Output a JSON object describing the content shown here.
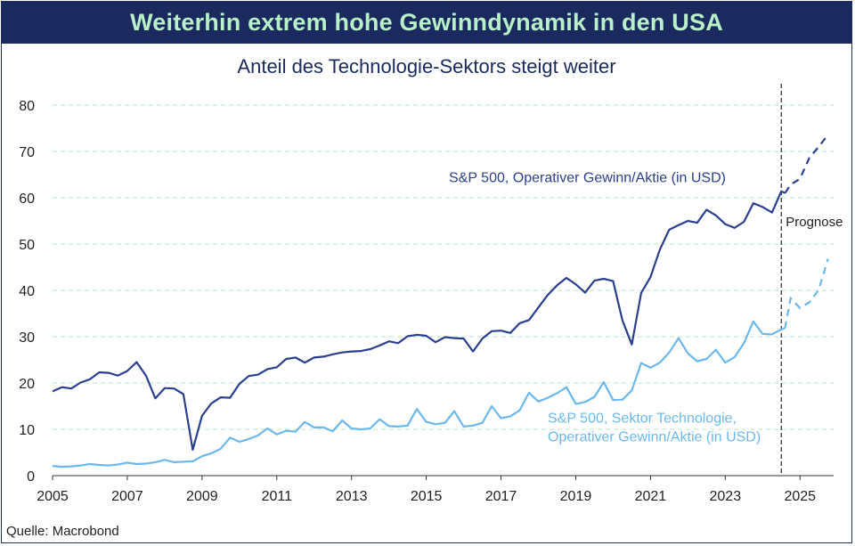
{
  "header": {
    "title": "Weiterhin extrem hohe Gewinndynamik in den USA",
    "subtitle": "Anteil des Technologie-Sektors steigt weiter"
  },
  "source": "Quelle: Macrobond",
  "colors": {
    "banner": "#1b2a5e",
    "banner_text": "#b8f0c8",
    "sp500": "#2b3f8f",
    "tech": "#6cb8ec",
    "grid": "#c8eccd"
  },
  "chart_data": {
    "type": "line",
    "xlim": [
      2005,
      2025.9
    ],
    "ylim": [
      0,
      80
    ],
    "y_ticks": [
      0,
      10,
      20,
      30,
      40,
      50,
      60,
      70,
      80
    ],
    "x_ticks": [
      2005,
      2007,
      2009,
      2011,
      2013,
      2015,
      2017,
      2019,
      2021,
      2023,
      2025
    ],
    "grid": "horizontal dashed",
    "annotation": {
      "label": "Prognose",
      "x": 2024.5
    },
    "series": [
      {
        "name": "S&P 500, Operativer Gewinn/Aktie (in USD)",
        "label_lines": [
          "S&P 500, Operativer Gewinn/Aktie (in USD)"
        ],
        "actual": [
          [
            2005.0,
            18.2
          ],
          [
            2005.25,
            19.1
          ],
          [
            2005.5,
            18.8
          ],
          [
            2005.75,
            20.1
          ],
          [
            2006.0,
            20.8
          ],
          [
            2006.25,
            22.3
          ],
          [
            2006.5,
            22.2
          ],
          [
            2006.75,
            21.6
          ],
          [
            2007.0,
            22.6
          ],
          [
            2007.25,
            24.5
          ],
          [
            2007.5,
            21.6
          ],
          [
            2007.75,
            16.7
          ],
          [
            2008.0,
            18.9
          ],
          [
            2008.25,
            18.8
          ],
          [
            2008.5,
            17.6
          ],
          [
            2008.75,
            5.6
          ],
          [
            2009.0,
            12.9
          ],
          [
            2009.25,
            15.6
          ],
          [
            2009.5,
            16.9
          ],
          [
            2009.75,
            16.8
          ],
          [
            2010.0,
            19.8
          ],
          [
            2010.25,
            21.5
          ],
          [
            2010.5,
            21.8
          ],
          [
            2010.75,
            23.0
          ],
          [
            2011.0,
            23.4
          ],
          [
            2011.25,
            25.2
          ],
          [
            2011.5,
            25.5
          ],
          [
            2011.75,
            24.4
          ],
          [
            2012.0,
            25.5
          ],
          [
            2012.25,
            25.7
          ],
          [
            2012.5,
            26.2
          ],
          [
            2012.75,
            26.6
          ],
          [
            2013.0,
            26.8
          ],
          [
            2013.25,
            26.9
          ],
          [
            2013.5,
            27.3
          ],
          [
            2013.75,
            28.1
          ],
          [
            2014.0,
            29.0
          ],
          [
            2014.25,
            28.6
          ],
          [
            2014.5,
            30.1
          ],
          [
            2014.75,
            30.4
          ],
          [
            2015.0,
            30.2
          ],
          [
            2015.25,
            28.8
          ],
          [
            2015.5,
            29.9
          ],
          [
            2015.75,
            29.7
          ],
          [
            2016.0,
            29.6
          ],
          [
            2016.25,
            26.8
          ],
          [
            2016.5,
            29.6
          ],
          [
            2016.75,
            31.2
          ],
          [
            2017.0,
            31.3
          ],
          [
            2017.25,
            30.8
          ],
          [
            2017.5,
            32.9
          ],
          [
            2017.75,
            33.6
          ],
          [
            2018.0,
            36.3
          ],
          [
            2018.25,
            39.0
          ],
          [
            2018.5,
            41.1
          ],
          [
            2018.75,
            42.7
          ],
          [
            2019.0,
            41.3
          ],
          [
            2019.25,
            39.5
          ],
          [
            2019.5,
            42.1
          ],
          [
            2019.75,
            42.5
          ],
          [
            2020.0,
            42.0
          ],
          [
            2020.25,
            33.5
          ],
          [
            2020.5,
            28.3
          ],
          [
            2020.75,
            39.4
          ],
          [
            2021.0,
            42.9
          ],
          [
            2021.25,
            48.8
          ],
          [
            2021.5,
            53.1
          ],
          [
            2021.75,
            54.1
          ],
          [
            2022.0,
            55.0
          ],
          [
            2022.25,
            54.6
          ],
          [
            2022.5,
            57.4
          ],
          [
            2022.75,
            56.2
          ],
          [
            2023.0,
            54.3
          ],
          [
            2023.25,
            53.5
          ],
          [
            2023.5,
            54.8
          ],
          [
            2023.75,
            58.8
          ],
          [
            2024.0,
            58.0
          ],
          [
            2024.25,
            56.8
          ],
          [
            2024.5,
            61.4
          ],
          [
            2024.6,
            61.0
          ]
        ],
        "forecast": [
          [
            2024.6,
            61.0
          ],
          [
            2024.75,
            62.8
          ],
          [
            2025.0,
            64.1
          ],
          [
            2025.25,
            68.6
          ],
          [
            2025.5,
            71.0
          ],
          [
            2025.75,
            73.6
          ]
        ]
      },
      {
        "name": "S&P 500, Sektor Technologie, Operativer Gewinn/Aktie (in USD)",
        "label_lines": [
          "S&P 500, Sektor Technologie,",
          "Operativer Gewinn/Aktie (in USD)"
        ],
        "actual": [
          [
            2005.0,
            2.1
          ],
          [
            2005.25,
            1.9
          ],
          [
            2005.5,
            2.0
          ],
          [
            2005.75,
            2.2
          ],
          [
            2006.0,
            2.5
          ],
          [
            2006.25,
            2.3
          ],
          [
            2006.5,
            2.2
          ],
          [
            2006.75,
            2.4
          ],
          [
            2007.0,
            2.8
          ],
          [
            2007.25,
            2.5
          ],
          [
            2007.5,
            2.6
          ],
          [
            2007.75,
            2.9
          ],
          [
            2008.0,
            3.4
          ],
          [
            2008.25,
            2.9
          ],
          [
            2008.5,
            3.0
          ],
          [
            2008.75,
            3.1
          ],
          [
            2009.0,
            4.2
          ],
          [
            2009.25,
            4.8
          ],
          [
            2009.5,
            5.8
          ],
          [
            2009.75,
            8.2
          ],
          [
            2010.0,
            7.3
          ],
          [
            2010.25,
            7.9
          ],
          [
            2010.5,
            8.7
          ],
          [
            2010.75,
            10.2
          ],
          [
            2011.0,
            8.9
          ],
          [
            2011.25,
            9.7
          ],
          [
            2011.5,
            9.5
          ],
          [
            2011.75,
            11.6
          ],
          [
            2012.0,
            10.4
          ],
          [
            2012.25,
            10.4
          ],
          [
            2012.5,
            9.6
          ],
          [
            2012.75,
            11.9
          ],
          [
            2013.0,
            10.2
          ],
          [
            2013.25,
            10.0
          ],
          [
            2013.5,
            10.2
          ],
          [
            2013.75,
            12.2
          ],
          [
            2014.0,
            10.7
          ],
          [
            2014.25,
            10.6
          ],
          [
            2014.5,
            10.8
          ],
          [
            2014.75,
            14.4
          ],
          [
            2015.0,
            11.6
          ],
          [
            2015.25,
            11.1
          ],
          [
            2015.5,
            11.4
          ],
          [
            2015.75,
            13.9
          ],
          [
            2016.0,
            10.6
          ],
          [
            2016.25,
            10.8
          ],
          [
            2016.5,
            11.4
          ],
          [
            2016.75,
            15.0
          ],
          [
            2017.0,
            12.4
          ],
          [
            2017.25,
            12.8
          ],
          [
            2017.5,
            14.1
          ],
          [
            2017.75,
            17.9
          ],
          [
            2018.0,
            16.0
          ],
          [
            2018.25,
            16.8
          ],
          [
            2018.5,
            17.8
          ],
          [
            2018.75,
            19.1
          ],
          [
            2019.0,
            15.5
          ],
          [
            2019.25,
            15.9
          ],
          [
            2019.5,
            17.0
          ],
          [
            2019.75,
            20.2
          ],
          [
            2020.0,
            16.3
          ],
          [
            2020.25,
            16.4
          ],
          [
            2020.5,
            18.4
          ],
          [
            2020.75,
            24.3
          ],
          [
            2021.0,
            23.3
          ],
          [
            2021.25,
            24.4
          ],
          [
            2021.5,
            26.6
          ],
          [
            2021.75,
            29.7
          ],
          [
            2022.0,
            26.4
          ],
          [
            2022.25,
            24.7
          ],
          [
            2022.5,
            25.2
          ],
          [
            2022.75,
            27.2
          ],
          [
            2023.0,
            24.4
          ],
          [
            2023.25,
            25.6
          ],
          [
            2023.5,
            28.6
          ],
          [
            2023.75,
            33.3
          ],
          [
            2024.0,
            30.6
          ],
          [
            2024.25,
            30.5
          ],
          [
            2024.5,
            31.6
          ],
          [
            2024.6,
            31.8
          ]
        ],
        "forecast": [
          [
            2024.6,
            31.8
          ],
          [
            2024.75,
            38.3
          ],
          [
            2025.0,
            36.2
          ],
          [
            2025.25,
            37.4
          ],
          [
            2025.5,
            40.1
          ],
          [
            2025.75,
            46.8
          ]
        ]
      }
    ]
  }
}
